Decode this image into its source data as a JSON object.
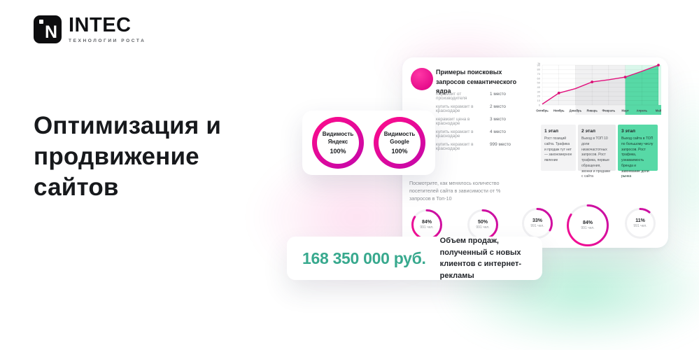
{
  "brand": {
    "name": "INTEC",
    "tagline": "ТЕХНОЛОГИИ РОСТА"
  },
  "headline": {
    "line1": "Оптимизация и",
    "line2": "продвижение",
    "line3": "сайтов"
  },
  "visibility": [
    {
      "title": "Видимость",
      "engine": "Яндекс",
      "value": "100%"
    },
    {
      "title": "Видимость",
      "engine": "Google",
      "value": "100%"
    }
  ],
  "queries": {
    "title": "Примеры поисковых запросов семантического ядра",
    "rows": [
      {
        "query": "Керамзит от производителя",
        "position": "1 место"
      },
      {
        "query": "купить керамзит в краснодаре",
        "position": "2 место"
      },
      {
        "query": "керамзит цена в краснодаре",
        "position": "3 место"
      },
      {
        "query": "купить керамзит в краснодаре",
        "position": "4 место"
      },
      {
        "query": "купить керамзит в краснодаре",
        "position": "999 место"
      }
    ]
  },
  "chart_data": {
    "type": "line",
    "x": [
      "Октябрь",
      "Ноябрь",
      "Декабрь",
      "Январь",
      "Февраль",
      "Март",
      "Апрель",
      "Май"
    ],
    "series": [
      {
        "name": "% запросов в Топ-10",
        "values": [
          2,
          27,
          37,
          52,
          57,
          63,
          76,
          90
        ]
      }
    ],
    "ylabel": "%",
    "ylim": [
      0,
      90
    ],
    "yticks": [
      0,
      10,
      20,
      30,
      40,
      50,
      60,
      70,
      80,
      90
    ],
    "grid": true,
    "dot_months": [
      1,
      3,
      5,
      7
    ],
    "bands": [
      {
        "from": "Октябрь",
        "to": "Ноябрь",
        "color": "#ffffff"
      },
      {
        "from": "Декабрь",
        "to": "Февраль",
        "color": "#f1f1f1"
      },
      {
        "from": "Март",
        "to": "Май",
        "color": "#57d9a6"
      }
    ]
  },
  "stages": [
    {
      "title": "1 этап",
      "text": "Рост позиций сайта. Трафика и продаж тут нет — закономерное явление"
    },
    {
      "title": "2 этап",
      "text": "Выход в ТОП 10 доли низкочастотных запросов. Рост трафика, первые обращения, звонки и продажи с сайта"
    },
    {
      "title": "3 этап",
      "text": "Выход сайта в ТОП по большому числу запросов. Рост трафика, узнаваемость бренда и завоевание доли рынка"
    }
  ],
  "visitors_note": "Посмотрите, как менялось количество посетителей сайта в зависимости от % запросов в Топ-10",
  "donuts": [
    {
      "value": "84%",
      "people": "991 чел."
    },
    {
      "value": "50%",
      "people": "991 чел."
    },
    {
      "value": "33%",
      "people": "991 чел."
    },
    {
      "value": "84%",
      "people": "991 чел."
    },
    {
      "value": "11%",
      "people": "991 чел."
    }
  ],
  "sales": {
    "amount": "168 350 000 руб.",
    "description": "Объем продаж, полученный с новых клиентов с интернет-рекламы"
  },
  "colors": {
    "accent": "#e2127e",
    "accent_deep": "#c40fa5",
    "green": "#57d9a6",
    "amount_teal": "#38a98e"
  }
}
